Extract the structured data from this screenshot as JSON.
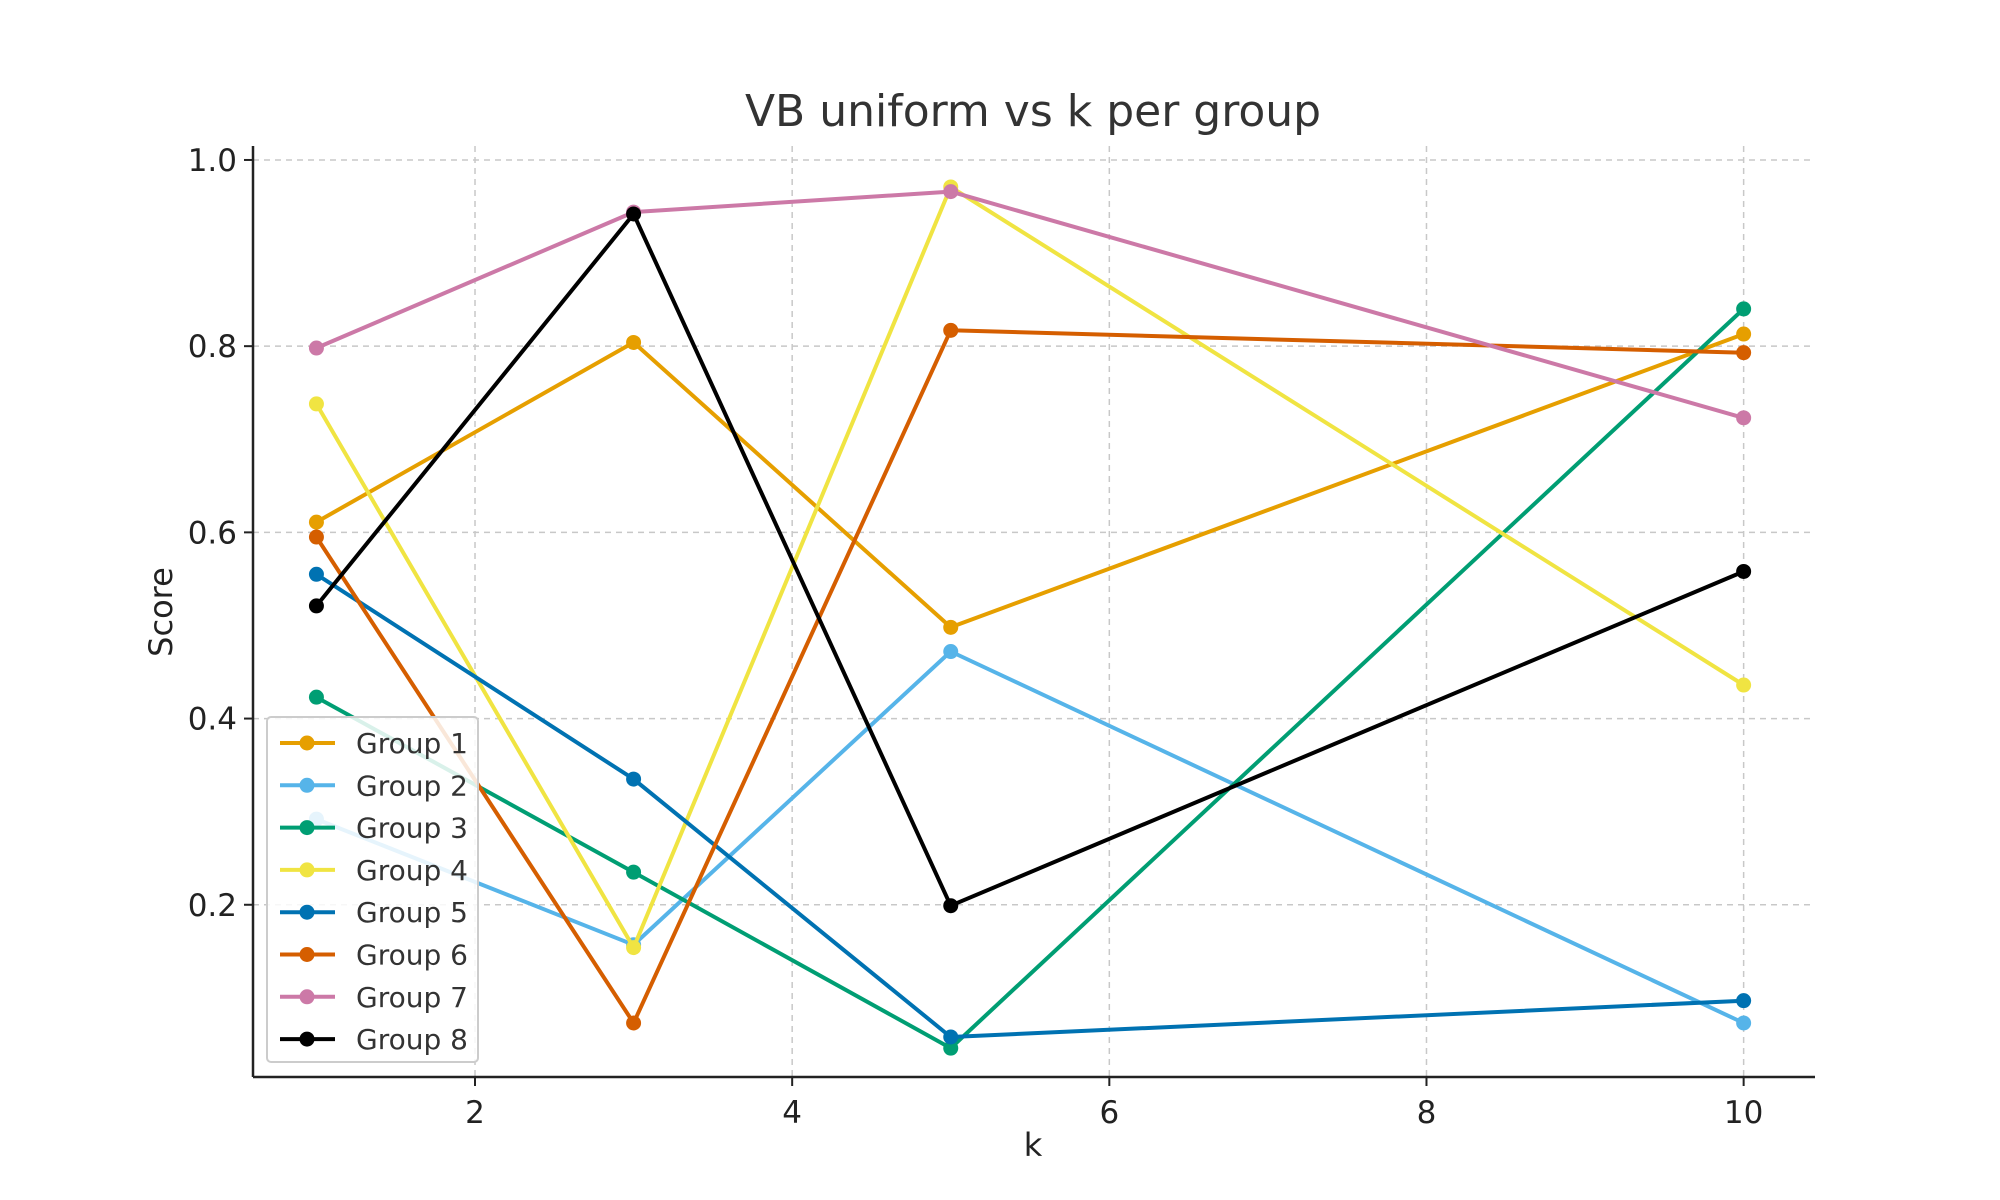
{
  "chart_data": {
    "type": "line",
    "title": "VB uniform vs k per group",
    "xlabel": "k",
    "ylabel": "Score",
    "x": [
      1,
      3,
      5,
      10
    ],
    "xlim": [
      0.6,
      10.45
    ],
    "ylim": [
      0.015,
      1.015
    ],
    "xticks": [
      2,
      4,
      6,
      8,
      10
    ],
    "yticks": [
      0.2,
      0.4,
      0.6,
      0.8,
      1.0
    ],
    "grid": true,
    "legend_position": "lower-left",
    "series": [
      {
        "name": "Group 1",
        "color": "#E69F00",
        "values": [
          0.611,
          0.804,
          0.498,
          0.813
        ]
      },
      {
        "name": "Group 2",
        "color": "#56B4E9",
        "values": [
          0.292,
          0.157,
          0.472,
          0.073
        ]
      },
      {
        "name": "Group 3",
        "color": "#009E73",
        "values": [
          0.423,
          0.235,
          0.046,
          0.84
        ]
      },
      {
        "name": "Group 4",
        "color": "#F0E442",
        "values": [
          0.738,
          0.154,
          0.971,
          0.436
        ]
      },
      {
        "name": "Group 5",
        "color": "#0072B2",
        "values": [
          0.555,
          0.335,
          0.058,
          0.097
        ]
      },
      {
        "name": "Group 6",
        "color": "#D55E00",
        "values": [
          0.595,
          0.073,
          0.817,
          0.793
        ]
      },
      {
        "name": "Group 7",
        "color": "#CC79A7",
        "values": [
          0.798,
          0.944,
          0.966,
          0.723
        ]
      },
      {
        "name": "Group 8",
        "color": "#000000",
        "values": [
          0.521,
          0.942,
          0.199,
          0.558
        ]
      }
    ]
  }
}
